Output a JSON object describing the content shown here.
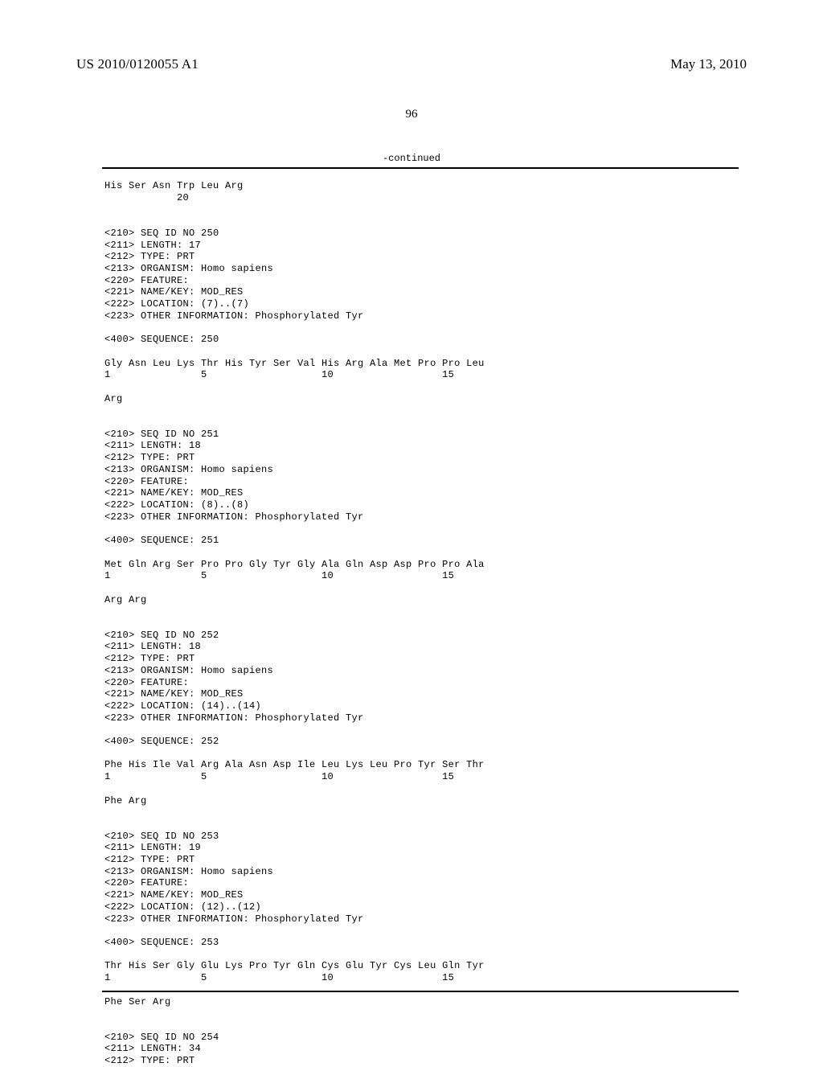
{
  "header": {
    "publication": "US 2010/0120055 A1",
    "date": "May 13, 2010"
  },
  "page_number": "96",
  "continued_label": "-continued",
  "sequences": {
    "block0": "His Ser Asn Trp Leu Arg\n            20",
    "entry250": {
      "meta": "<210> SEQ ID NO 250\n<211> LENGTH: 17\n<212> TYPE: PRT\n<213> ORGANISM: Homo sapiens\n<220> FEATURE:\n<221> NAME/KEY: MOD_RES\n<222> LOCATION: (7)..(7)\n<223> OTHER INFORMATION: Phosphorylated Tyr",
      "seqlabel": "<400> SEQUENCE: 250",
      "line1": "Gly Asn Leu Lys Thr His Tyr Ser Val His Arg Ala Met Pro Pro Leu\n1               5                   10                  15",
      "line2": "Arg"
    },
    "entry251": {
      "meta": "<210> SEQ ID NO 251\n<211> LENGTH: 18\n<212> TYPE: PRT\n<213> ORGANISM: Homo sapiens\n<220> FEATURE:\n<221> NAME/KEY: MOD_RES\n<222> LOCATION: (8)..(8)\n<223> OTHER INFORMATION: Phosphorylated Tyr",
      "seqlabel": "<400> SEQUENCE: 251",
      "line1": "Met Gln Arg Ser Pro Pro Gly Tyr Gly Ala Gln Asp Asp Pro Pro Ala\n1               5                   10                  15",
      "line2": "Arg Arg"
    },
    "entry252": {
      "meta": "<210> SEQ ID NO 252\n<211> LENGTH: 18\n<212> TYPE: PRT\n<213> ORGANISM: Homo sapiens\n<220> FEATURE:\n<221> NAME/KEY: MOD_RES\n<222> LOCATION: (14)..(14)\n<223> OTHER INFORMATION: Phosphorylated Tyr",
      "seqlabel": "<400> SEQUENCE: 252",
      "line1": "Phe His Ile Val Arg Ala Asn Asp Ile Leu Lys Leu Pro Tyr Ser Thr\n1               5                   10                  15",
      "line2": "Phe Arg"
    },
    "entry253": {
      "meta": "<210> SEQ ID NO 253\n<211> LENGTH: 19\n<212> TYPE: PRT\n<213> ORGANISM: Homo sapiens\n<220> FEATURE:\n<221> NAME/KEY: MOD_RES\n<222> LOCATION: (12)..(12)\n<223> OTHER INFORMATION: Phosphorylated Tyr",
      "seqlabel": "<400> SEQUENCE: 253",
      "line1": "Thr His Ser Gly Glu Lys Pro Tyr Gln Cys Glu Tyr Cys Leu Gln Tyr\n1               5                   10                  15",
      "line2": "Phe Ser Arg"
    },
    "entry254": {
      "meta": "<210> SEQ ID NO 254\n<211> LENGTH: 34\n<212> TYPE: PRT"
    }
  }
}
